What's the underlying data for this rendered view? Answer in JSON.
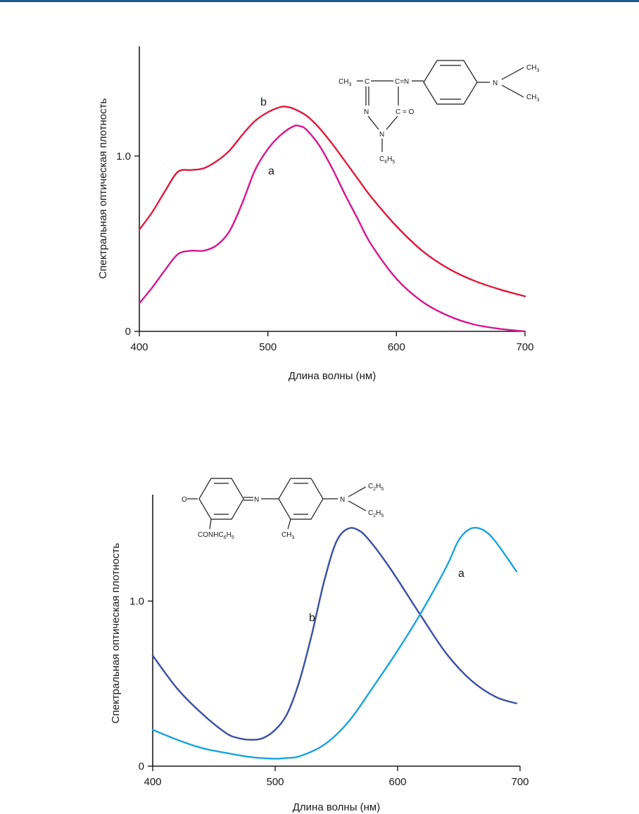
{
  "chart_data": [
    {
      "type": "line",
      "title": "",
      "xlabel": "Длина волны (нм)",
      "ylabel": "Спектральная оптическая плотность",
      "xlim": [
        400,
        700
      ],
      "ylim": [
        0,
        1.6
      ],
      "xticks": [
        "400",
        "500",
        "600",
        "700"
      ],
      "yticks": [
        "0",
        "1.0"
      ],
      "grid": false,
      "series": [
        {
          "name": "b",
          "color": "#e0193c",
          "x": [
            400,
            410,
            420,
            430,
            440,
            450,
            460,
            470,
            480,
            490,
            500,
            510,
            515,
            520,
            530,
            540,
            550,
            560,
            570,
            580,
            600,
            620,
            640,
            660,
            680,
            700
          ],
          "y": [
            0.58,
            0.68,
            0.8,
            0.91,
            0.92,
            0.93,
            0.97,
            1.03,
            1.12,
            1.2,
            1.25,
            1.28,
            1.28,
            1.27,
            1.23,
            1.16,
            1.07,
            0.97,
            0.87,
            0.77,
            0.6,
            0.46,
            0.36,
            0.29,
            0.24,
            0.2
          ]
        },
        {
          "name": "a",
          "color": "#d4178f",
          "x": [
            400,
            410,
            420,
            430,
            440,
            450,
            460,
            470,
            480,
            490,
            500,
            510,
            520,
            525,
            530,
            540,
            550,
            560,
            570,
            580,
            600,
            620,
            640,
            660,
            680,
            700
          ],
          "y": [
            0.16,
            0.25,
            0.35,
            0.44,
            0.46,
            0.46,
            0.49,
            0.57,
            0.73,
            0.92,
            1.04,
            1.12,
            1.17,
            1.17,
            1.15,
            1.06,
            0.93,
            0.78,
            0.64,
            0.5,
            0.3,
            0.17,
            0.09,
            0.04,
            0.015,
            0.0
          ]
        }
      ],
      "annotations": {
        "structure_labels": [
          "CH3",
          "C",
          "C=N",
          "N",
          "CH3",
          "CH3",
          "N",
          "C=O",
          "N",
          "C6H5"
        ]
      }
    },
    {
      "type": "line",
      "title": "",
      "xlabel": "Длина волны (нм)",
      "ylabel": "Спектральная оптическая плотность",
      "xlim": [
        400,
        700
      ],
      "ylim": [
        0,
        1.6
      ],
      "xticks": [
        "400",
        "500",
        "600",
        "700"
      ],
      "yticks": [
        "0",
        "1.0"
      ],
      "grid": false,
      "series": [
        {
          "name": "b",
          "color": "#3a4ea3",
          "x": [
            400,
            420,
            440,
            460,
            470,
            480,
            490,
            500,
            510,
            520,
            530,
            540,
            550,
            560,
            570,
            580,
            590,
            600,
            620,
            640,
            660,
            680,
            697
          ],
          "y": [
            0.67,
            0.47,
            0.32,
            0.2,
            0.17,
            0.16,
            0.17,
            0.22,
            0.32,
            0.52,
            0.8,
            1.12,
            1.36,
            1.44,
            1.42,
            1.34,
            1.24,
            1.13,
            0.9,
            0.68,
            0.52,
            0.42,
            0.38
          ]
        },
        {
          "name": "a",
          "color": "#1aa3dc",
          "x": [
            400,
            420,
            440,
            460,
            480,
            500,
            510,
            520,
            540,
            560,
            580,
            600,
            620,
            640,
            650,
            660,
            670,
            680,
            697
          ],
          "y": [
            0.22,
            0.16,
            0.11,
            0.08,
            0.055,
            0.045,
            0.05,
            0.06,
            0.13,
            0.27,
            0.48,
            0.7,
            0.94,
            1.21,
            1.37,
            1.44,
            1.43,
            1.36,
            1.18
          ]
        }
      ],
      "annotations": {
        "structure_labels": [
          "O",
          "N",
          "N",
          "C2H5",
          "C2H5",
          "CONHC6H5",
          "CH3"
        ]
      }
    }
  ]
}
